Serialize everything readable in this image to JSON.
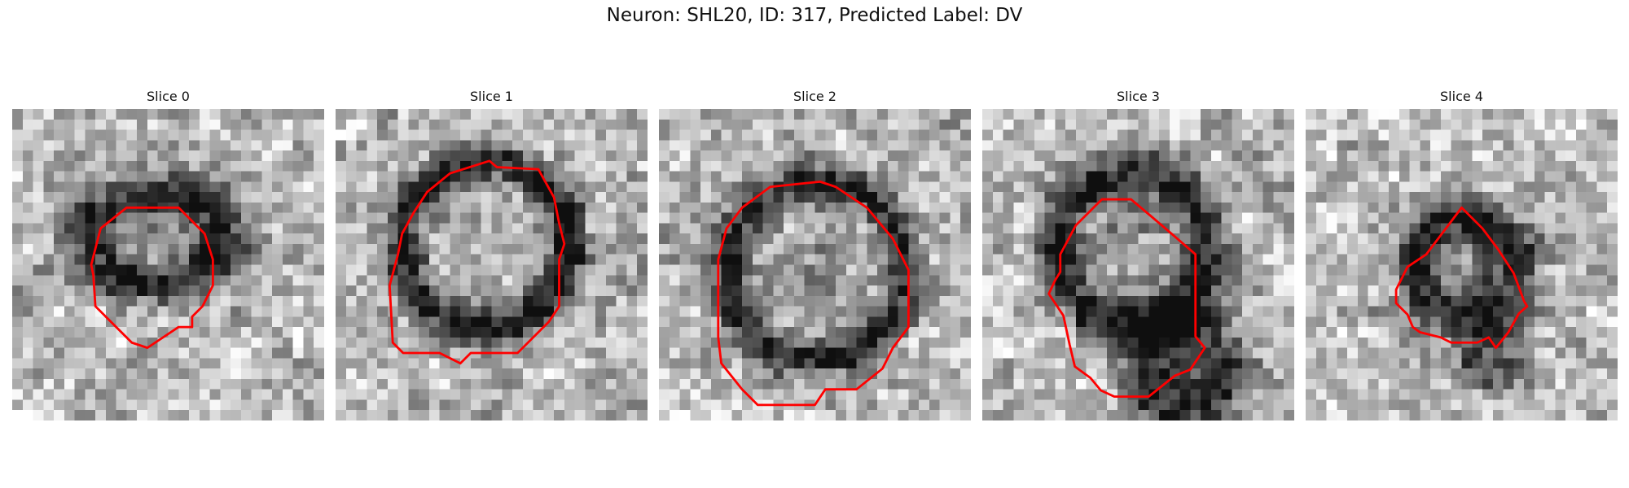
{
  "figure": {
    "title": "Neuron: SHL20, ID: 317, Predicted Label: DV",
    "contour_color": "#ff0000"
  },
  "slices": [
    {
      "title": "Slice 0"
    },
    {
      "title": "Slice 1"
    },
    {
      "title": "Slice 2"
    },
    {
      "title": "Slice 3"
    },
    {
      "title": "Slice 4"
    }
  ]
}
